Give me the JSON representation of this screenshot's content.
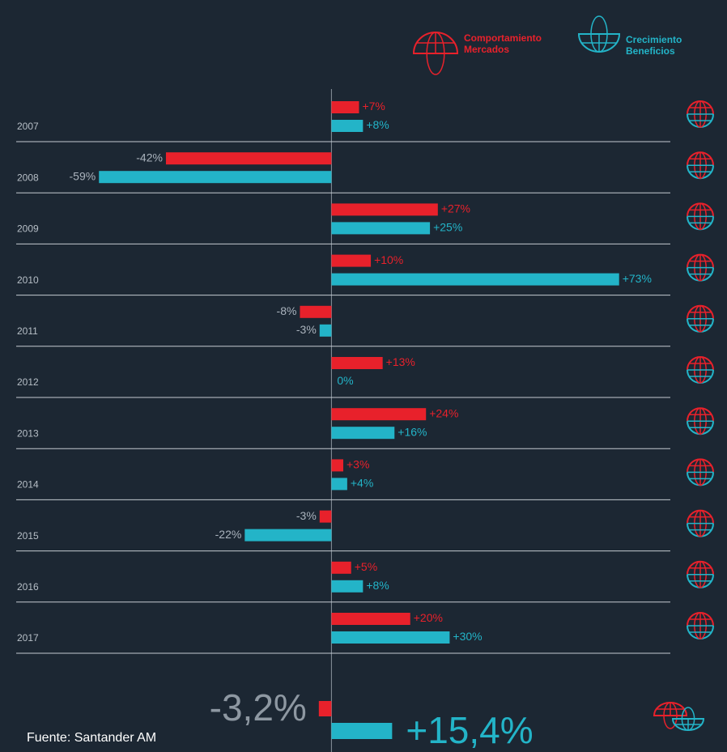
{
  "chart_data": {
    "type": "bar",
    "orientation": "horizontal",
    "categories": [
      "2007",
      "2008",
      "2009",
      "2010",
      "2011",
      "2012",
      "2013",
      "2014",
      "2015",
      "2016",
      "2017"
    ],
    "series": [
      {
        "name": "Comportamiento Mercados",
        "color": "#e8212b",
        "values": [
          7,
          -42,
          27,
          10,
          -8,
          13,
          24,
          3,
          -3,
          5,
          20
        ],
        "value_labels": [
          "+7%",
          "-42%",
          "+27%",
          "+10%",
          "-8%",
          "+13%",
          "+24%",
          "+3%",
          "-3%",
          "+5%",
          "+20%"
        ]
      },
      {
        "name": "Crecimiento Beneficios",
        "color": "#23b4c8",
        "values": [
          8,
          -59,
          25,
          73,
          -3,
          0,
          16,
          4,
          -22,
          8,
          30
        ],
        "value_labels": [
          "+8%",
          "-59%",
          "+25%",
          "+73%",
          "-3%",
          "0%",
          "+16%",
          "+4%",
          "-22%",
          "+8%",
          "+30%"
        ]
      }
    ],
    "summary": {
      "values": [
        -3.2,
        15.4
      ],
      "value_labels": [
        "-3,2%",
        "+15,4%"
      ]
    },
    "xlim": [
      -80,
      86
    ],
    "source": "Fuente: Santander AM"
  }
}
